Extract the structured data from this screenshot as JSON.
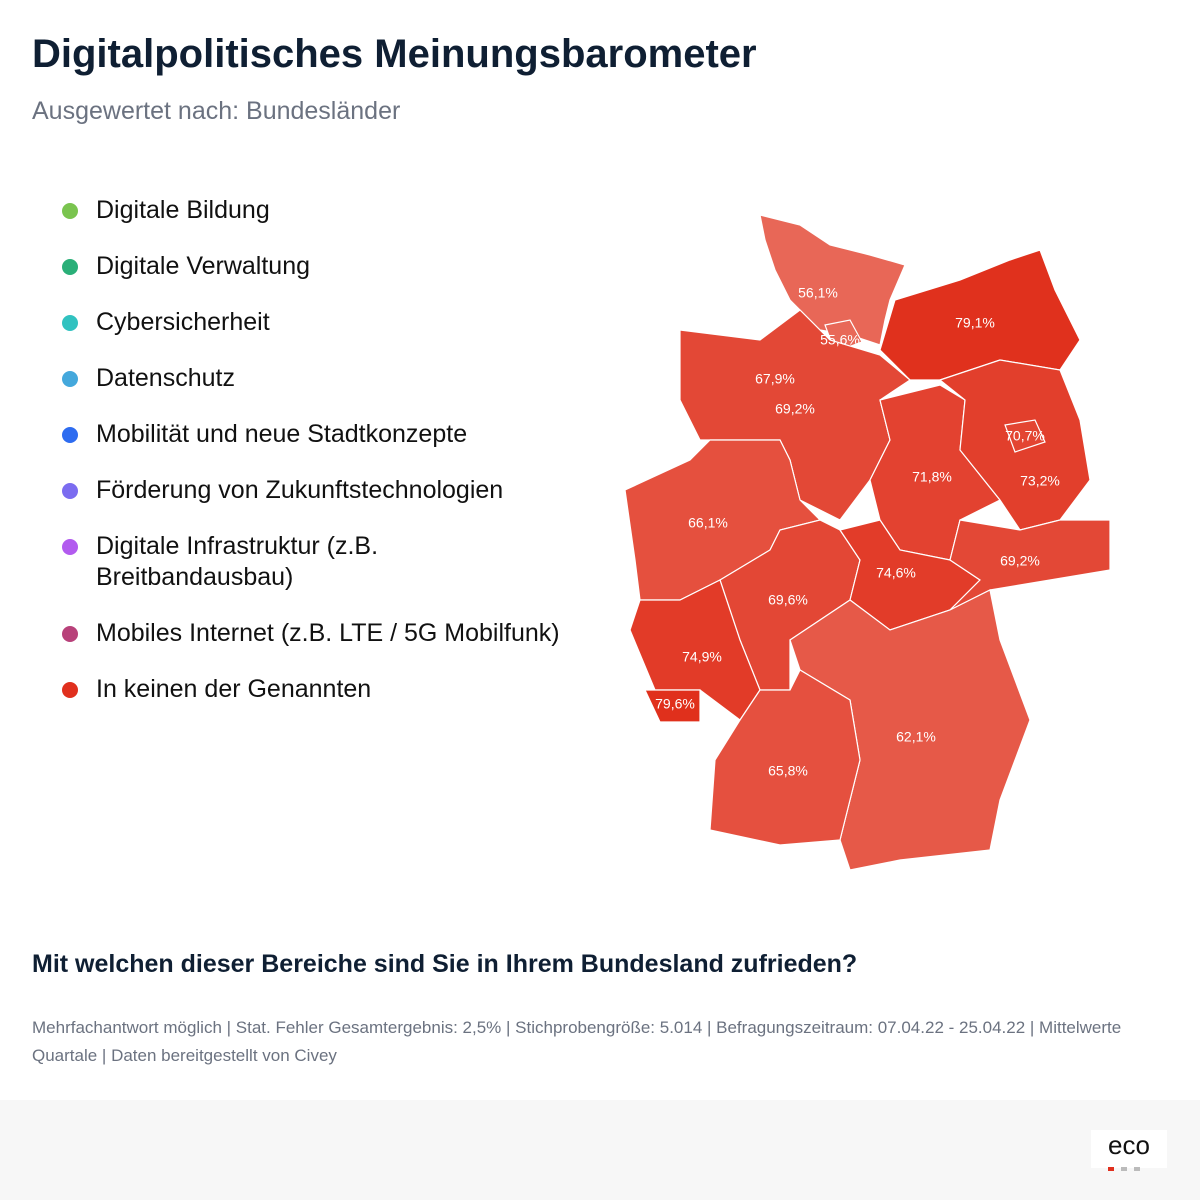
{
  "header": {
    "title": "Digitalpolitisches Meinungsbarometer",
    "subtitle": "Ausgewertet nach: Bundesländer"
  },
  "legend": [
    {
      "label": "Digitale Bildung",
      "color": "#7ac44f"
    },
    {
      "label": "Digitale Verwaltung",
      "color": "#2aaf78"
    },
    {
      "label": "Cybersicherheit",
      "color": "#31c2c0"
    },
    {
      "label": "Datenschutz",
      "color": "#44a8dc"
    },
    {
      "label": "Mobilität und neue Stadtkonzepte",
      "color": "#2e6cf0"
    },
    {
      "label": "Förderung von Zukunftstechnologien",
      "color": "#7b6cf0"
    },
    {
      "label": "Digitale Infrastruktur (z.B. Breitbandausbau)",
      "color": "#b25bef"
    },
    {
      "label": "Mobiles Internet (z.B. LTE / 5G Mobilfunk)",
      "color": "#b8417a"
    },
    {
      "label": "In keinen der Genannten",
      "color": "#e0301e"
    }
  ],
  "map": {
    "regions": [
      {
        "value": 56.1,
        "label": "56,1%"
      },
      {
        "value": 55.6,
        "label": "55,6%"
      },
      {
        "value": 79.1,
        "label": "79,1%"
      },
      {
        "value": 67.9,
        "label": "67,9%"
      },
      {
        "value": 69.2,
        "label": "69,2%"
      },
      {
        "value": 71.8,
        "label": "71,8%"
      },
      {
        "value": 73.2,
        "label": "73,2%"
      },
      {
        "value": 70.7,
        "label": "70,7%"
      },
      {
        "value": 66.1,
        "label": "66,1%"
      },
      {
        "value": 69.6,
        "label": "69,6%"
      },
      {
        "value": 74.6,
        "label": "74,6%"
      },
      {
        "value": 69.2,
        "label": "69,2%"
      },
      {
        "value": 74.9,
        "label": "74,9%"
      },
      {
        "value": 79.6,
        "label": "79,6%"
      },
      {
        "value": 62.1,
        "label": "62,1%"
      },
      {
        "value": 65.8,
        "label": "65,8%"
      }
    ]
  },
  "question": "Mit welchen dieser Bereiche sind Sie in Ihrem Bundesland zufrieden?",
  "note": "Mehrfachantwort möglich | Stat. Fehler Gesamtergebnis: 2,5% | Stichprobengröße: 5.014 | Befragungszeitraum: 07.04.22 - 25.04.22 | Mittelwerte Quartale | Daten bereitgestellt von Civey",
  "logo": "eco"
}
